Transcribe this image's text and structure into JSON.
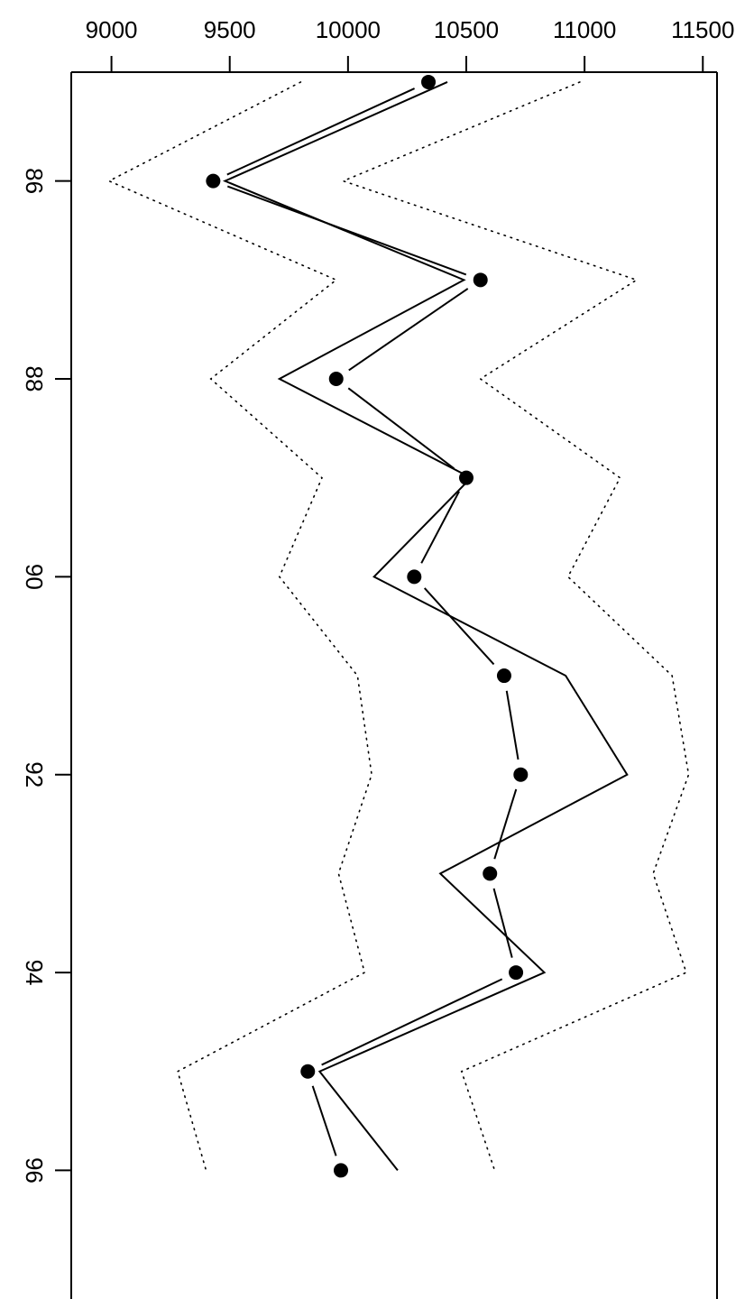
{
  "chart_data": {
    "type": "line",
    "title": "",
    "xlabel": "",
    "ylabel": "",
    "orientation": "rotated (year axis vertical, value axis horizontal on top)",
    "value_axis": {
      "ticks": [
        9000,
        9500,
        10000,
        10500,
        11000,
        11500
      ],
      "range": [
        8830,
        11560
      ]
    },
    "year_axis": {
      "ticks": [
        86,
        88,
        90,
        92,
        94,
        96
      ],
      "range": [
        84.9,
        97.3
      ]
    },
    "x": [
      85,
      86,
      87,
      88,
      89,
      90,
      91,
      92,
      93,
      94,
      95,
      96
    ],
    "series": [
      {
        "style": "points-with-line",
        "values": [
          10340,
          9430,
          10560,
          9950,
          10500,
          10280,
          10660,
          10730,
          10600,
          10710,
          9830,
          9970
        ]
      },
      {
        "style": "solid-line",
        "values": [
          10420,
          9480,
          10490,
          9710,
          10520,
          10110,
          10920,
          11180,
          10390,
          10830,
          9880,
          10210
        ]
      },
      {
        "style": "dotted-line",
        "values": [
          9800,
          8990,
          9950,
          9420,
          9890,
          9710,
          10040,
          10100,
          9960,
          10070,
          9280,
          9400
        ]
      },
      {
        "style": "dotted-line",
        "values": [
          10980,
          9980,
          11220,
          10560,
          11150,
          10930,
          11370,
          11440,
          11290,
          11430,
          10480,
          10620
        ]
      }
    ]
  }
}
